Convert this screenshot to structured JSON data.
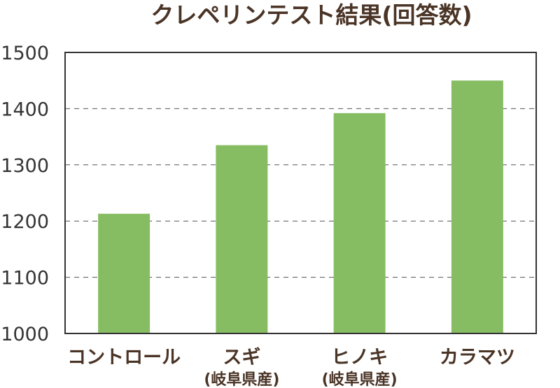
{
  "chart_data": {
    "type": "bar",
    "title": "クレペリンテスト結果(回答数)",
    "categories": [
      "コントロール",
      "スギ",
      "ヒノキ",
      "カラマツ"
    ],
    "category_sublabels": [
      "",
      "(岐阜県産)",
      "(岐阜県産)",
      ""
    ],
    "values": [
      1213,
      1335,
      1392,
      1450
    ],
    "ylim": [
      1000,
      1500
    ],
    "yticks": [
      1000,
      1100,
      1200,
      1300,
      1400,
      1500
    ],
    "grid": true,
    "bar_color": "#86bd63"
  }
}
